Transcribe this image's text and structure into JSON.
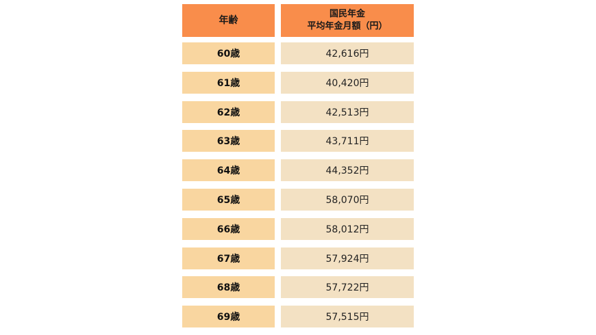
{
  "table": {
    "header": {
      "age": "年齢",
      "amount_line1": "国民年金",
      "amount_line2": "平均年金月額（円）"
    },
    "rows": [
      {
        "age": "60歳",
        "amount": "42,616円"
      },
      {
        "age": "61歳",
        "amount": "40,420円"
      },
      {
        "age": "62歳",
        "amount": "42,513円"
      },
      {
        "age": "63歳",
        "amount": "43,711円"
      },
      {
        "age": "64歳",
        "amount": "44,352円"
      },
      {
        "age": "65歳",
        "amount": "58,070円"
      },
      {
        "age": "66歳",
        "amount": "58,012円"
      },
      {
        "age": "67歳",
        "amount": "57,924円"
      },
      {
        "age": "68歳",
        "amount": "57,722円"
      },
      {
        "age": "69歳",
        "amount": "57,515円"
      }
    ]
  },
  "colors": {
    "header_bg": "#f98d4b",
    "age_cell_bg": "#f9d6a0",
    "amount_cell_bg": "#f3e1c3"
  }
}
